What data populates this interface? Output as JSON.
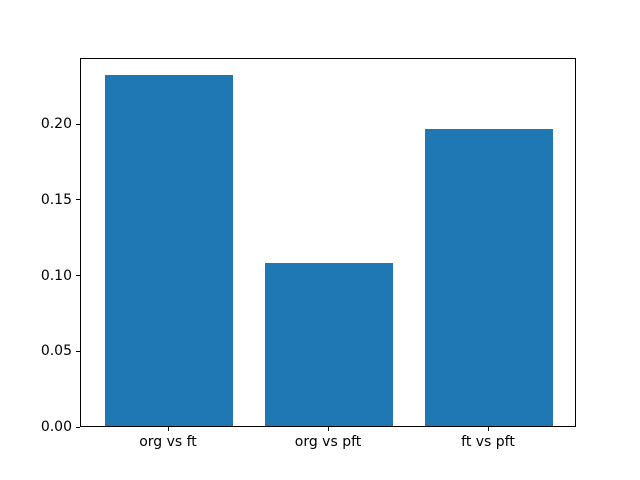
{
  "chart_data": {
    "type": "bar",
    "title": "",
    "xlabel": "",
    "ylabel": "",
    "categories": [
      "org vs ft",
      "org vs pft",
      "ft vs pft"
    ],
    "values": [
      0.232,
      0.108,
      0.196
    ],
    "bar_color": "#1f77b4",
    "bar_width": 0.8,
    "xlim": [
      -0.55,
      2.55
    ],
    "ylim": [
      0,
      0.244
    ],
    "yticks": [
      0.0,
      0.05,
      0.1,
      0.15,
      0.2
    ],
    "ytick_labels": [
      "0.00",
      "0.05",
      "0.10",
      "0.15",
      "0.20"
    ],
    "grid": false,
    "legend": "none",
    "background_color": "#ffffff",
    "spine_color": "#000000"
  }
}
